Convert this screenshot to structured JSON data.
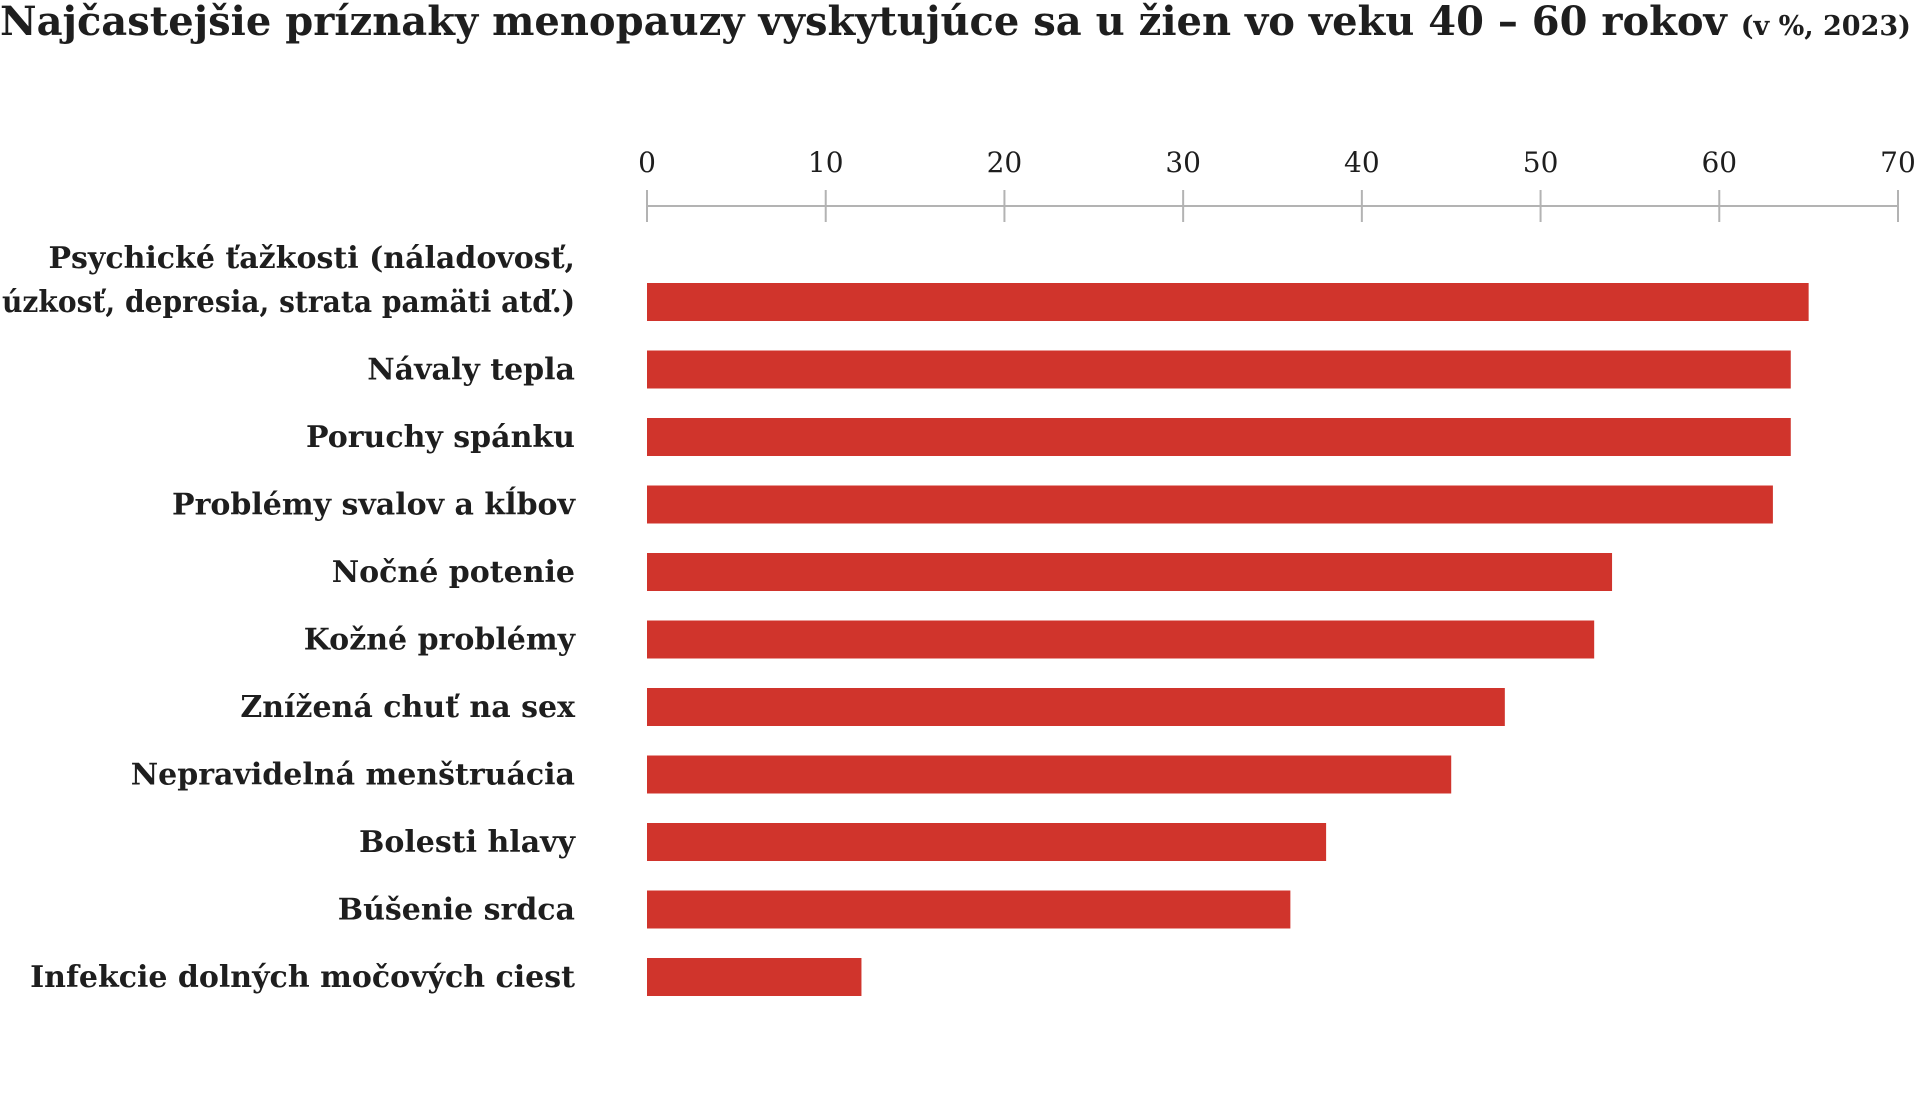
{
  "chart_data": {
    "type": "bar",
    "orientation": "horizontal",
    "title": "Najčastejšie príznaky menopauzy vyskytujúce sa u žien vo veku 40 – 60 rokov",
    "subtitle": "(v %, 2023)",
    "categories": [
      [
        "Psychické ťažkosti (náladovosť,",
        "úzkosť, depresia, strata pamäti atď.)"
      ],
      [
        "Návaly tepla"
      ],
      [
        "Poruchy spánku"
      ],
      [
        "Problémy svalov a kĺbov"
      ],
      [
        "Nočné potenie"
      ],
      [
        "Kožné problémy"
      ],
      [
        "Znížená chuť na sex"
      ],
      [
        "Nepravidelná menštruácia"
      ],
      [
        "Bolesti hlavy"
      ],
      [
        "Búšenie srdca"
      ],
      [
        "Infekcie dolných močových ciest"
      ]
    ],
    "values": [
      65,
      64,
      64,
      63,
      54,
      53,
      48,
      45,
      38,
      36,
      12
    ],
    "xlim": [
      0,
      70
    ],
    "ticks": [
      "0",
      "10",
      "20",
      "30",
      "40",
      "50",
      "60",
      "70"
    ],
    "axis_position": "top",
    "grid": false,
    "bar_color": "#d0342c",
    "axis_color": "#b3b3b3"
  }
}
